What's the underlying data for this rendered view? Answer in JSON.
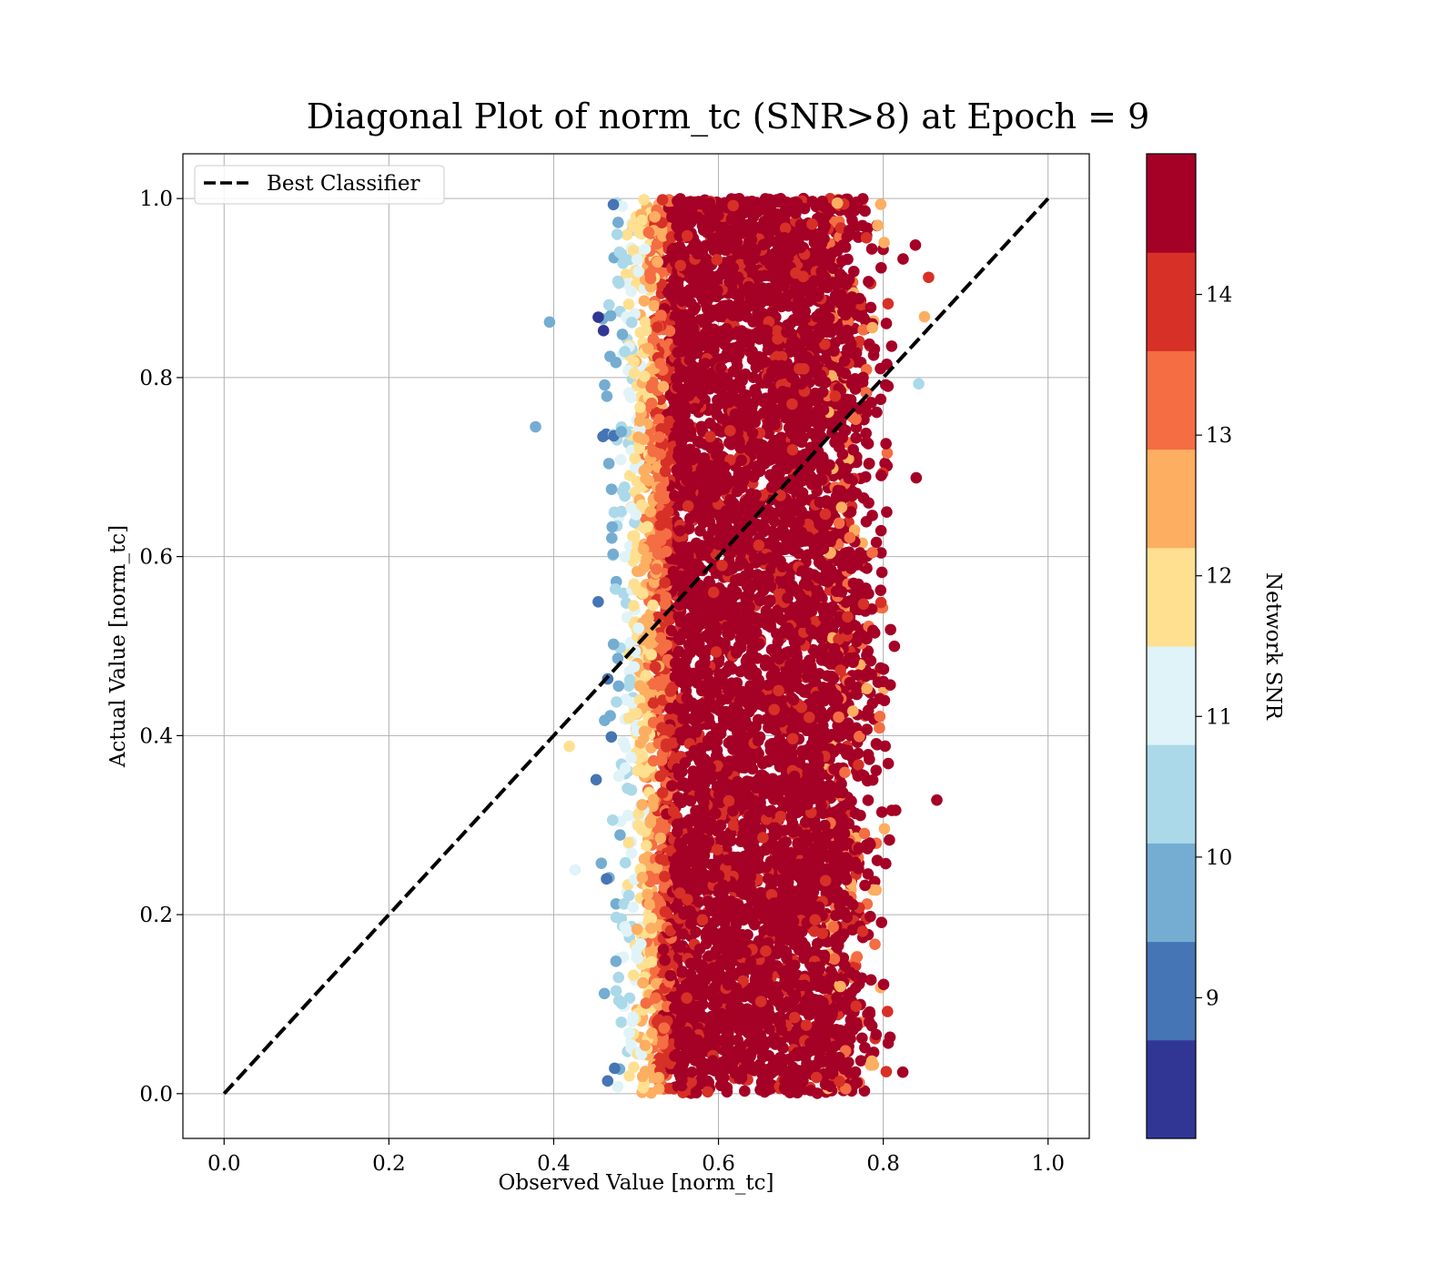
{
  "chart_data": {
    "type": "scatter",
    "title": "Diagonal Plot of norm_tc (SNR>8) at Epoch = 9",
    "xlabel": "Observed Value [norm_tc]",
    "ylabel": "Actual Value [norm_tc]",
    "xlim": [
      -0.05,
      1.05
    ],
    "ylim": [
      -0.05,
      1.05
    ],
    "xticks": [
      "0.0",
      "0.2",
      "0.4",
      "0.6",
      "0.8",
      "1.0"
    ],
    "xtick_values": [
      0.0,
      0.2,
      0.4,
      0.6,
      0.8,
      1.0
    ],
    "yticks": [
      "0.0",
      "0.2",
      "0.4",
      "0.6",
      "0.8",
      "1.0"
    ],
    "ytick_values": [
      0.0,
      0.2,
      0.4,
      0.6,
      0.8,
      1.0
    ],
    "grid": true,
    "legend": {
      "position": "upper-left",
      "entries": [
        {
          "label": "Best Classifier",
          "style": "black-dashed-line"
        }
      ]
    },
    "reference_line": {
      "name": "Best Classifier",
      "x": [
        0.0,
        1.0
      ],
      "y": [
        0.0,
        1.0
      ],
      "color": "#000000",
      "style": "dashed"
    },
    "scatter": {
      "color_by": "Network SNR",
      "x_range_core": [
        0.55,
        0.73
      ],
      "x_range_spread": [
        0.44,
        0.86
      ],
      "y_range": [
        0.0,
        1.0
      ],
      "outliers": [
        {
          "x": 0.395,
          "y": 0.862,
          "snr": 9.5
        },
        {
          "x": 0.378,
          "y": 0.745,
          "snr": 9.9
        },
        {
          "x": 0.419,
          "y": 0.388,
          "snr": 11.8
        },
        {
          "x": 0.426,
          "y": 0.25,
          "snr": 11.2
        },
        {
          "x": 0.865,
          "y": 0.328,
          "snr": 14.8
        },
        {
          "x": 0.855,
          "y": 0.912,
          "snr": 14.2
        },
        {
          "x": 0.85,
          "y": 0.868,
          "snr": 12.6
        },
        {
          "x": 0.843,
          "y": 0.793,
          "snr": 10.4
        },
        {
          "x": 0.839,
          "y": 0.948,
          "snr": 14.8
        },
        {
          "x": 0.84,
          "y": 0.688,
          "snr": 14.8
        }
      ]
    },
    "colorbar": {
      "label": "Network SNR",
      "range": [
        8,
        15
      ],
      "tick_labels": [
        "9",
        "10",
        "11",
        "12",
        "13",
        "14"
      ],
      "tick_values": [
        9,
        10,
        11,
        12,
        13,
        14
      ],
      "bins": [
        {
          "from": 8.0,
          "to": 8.7,
          "color": "#313695"
        },
        {
          "from": 8.7,
          "to": 9.4,
          "color": "#4575b4"
        },
        {
          "from": 9.4,
          "to": 10.1,
          "color": "#74add1"
        },
        {
          "from": 10.1,
          "to": 10.8,
          "color": "#abd9e9"
        },
        {
          "from": 10.8,
          "to": 11.5,
          "color": "#e0f3f8"
        },
        {
          "from": 11.5,
          "to": 12.2,
          "color": "#fee090"
        },
        {
          "from": 12.2,
          "to": 12.9,
          "color": "#fdae61"
        },
        {
          "from": 12.9,
          "to": 13.6,
          "color": "#f46d43"
        },
        {
          "from": 13.6,
          "to": 14.3,
          "color": "#d73027"
        },
        {
          "from": 14.3,
          "to": 15.0,
          "color": "#a50026"
        }
      ]
    }
  }
}
